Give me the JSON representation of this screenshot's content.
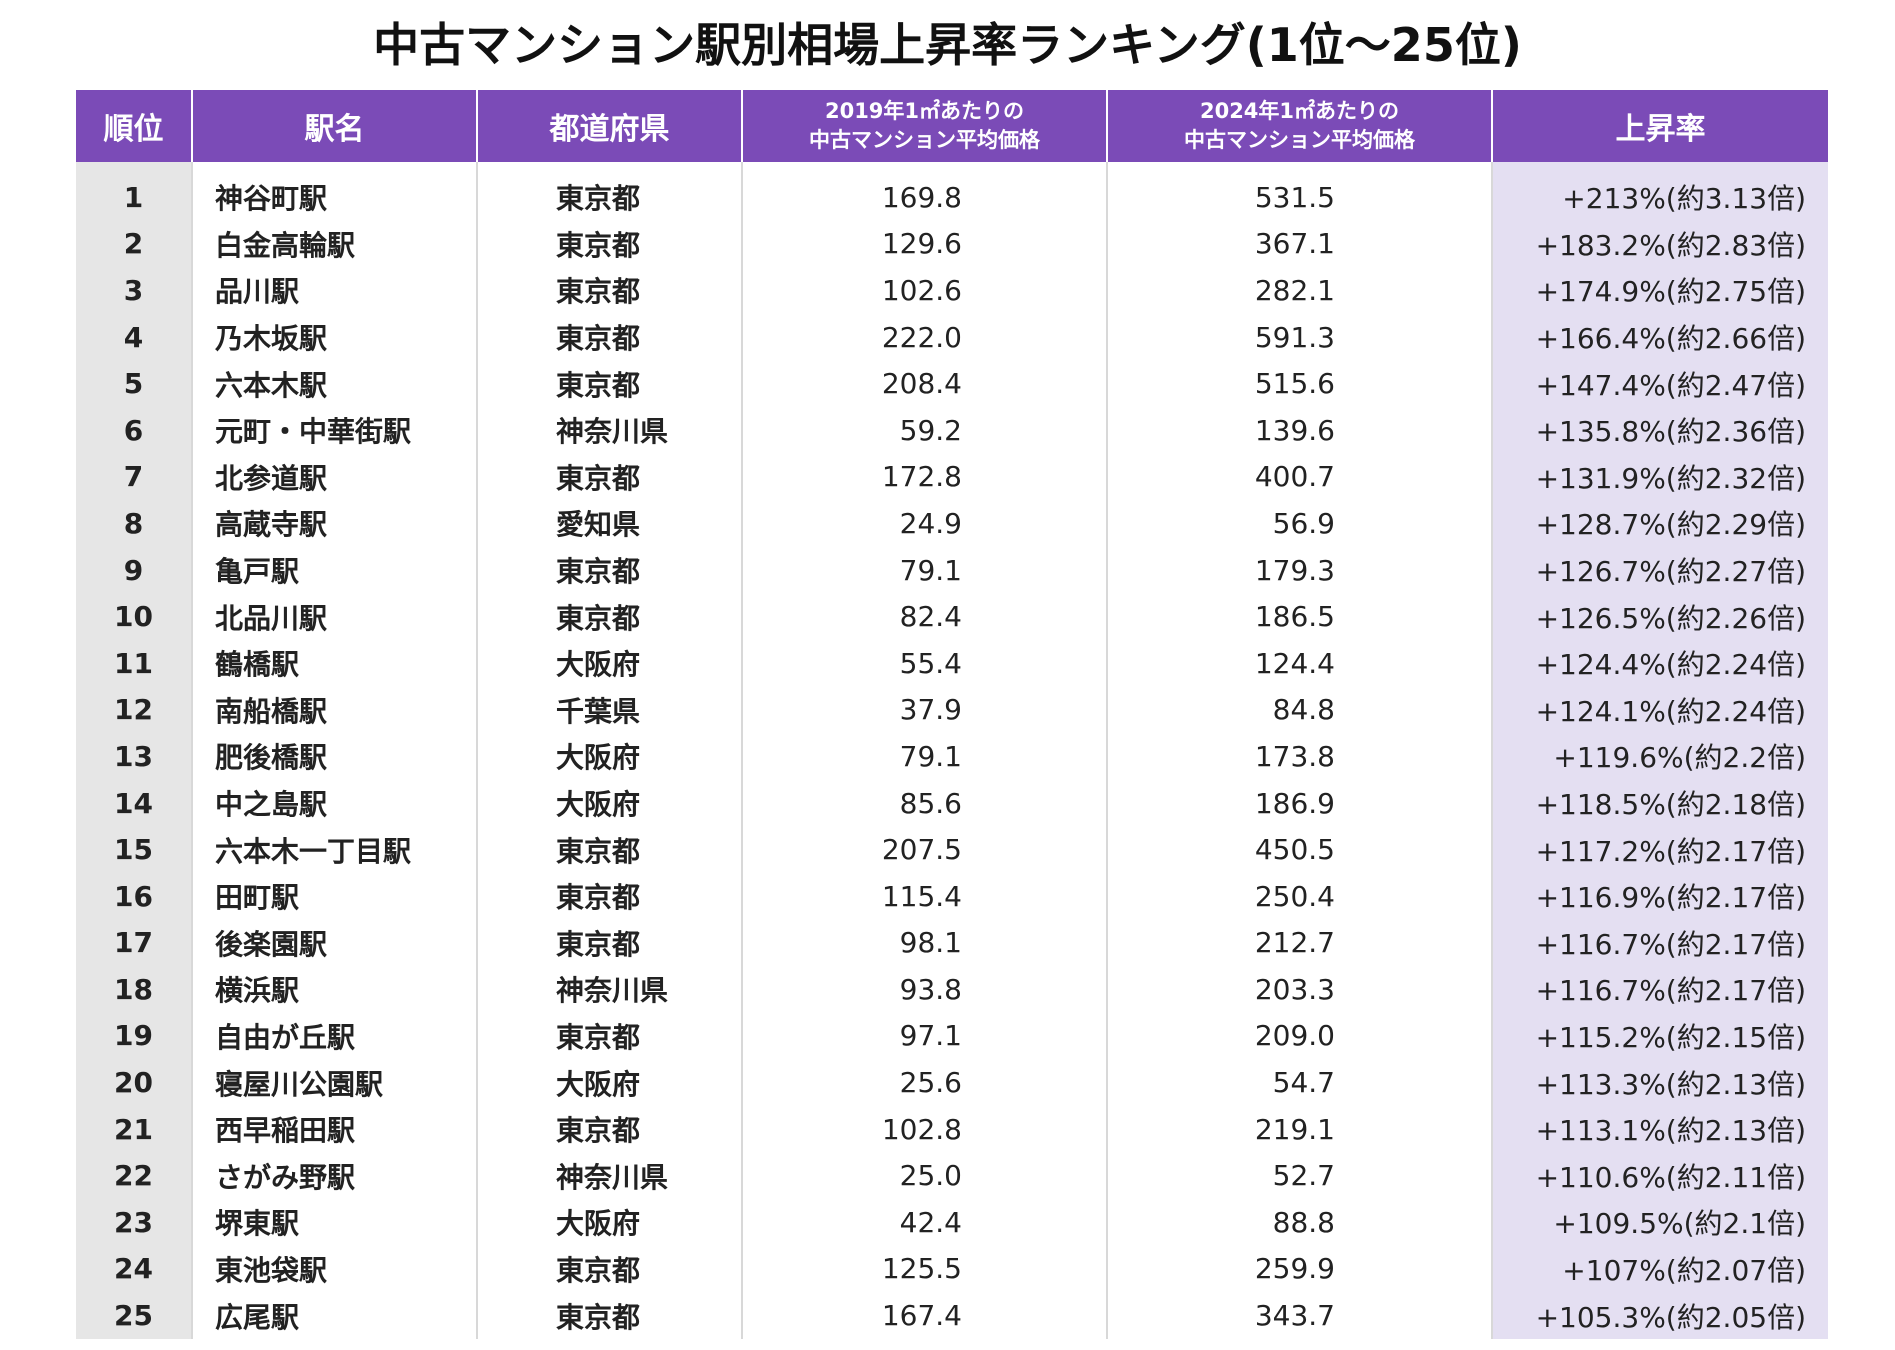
{
  "title": "中古マンション駅別相場上昇率ランキング(1位〜25位)",
  "header": {
    "rank": "順位",
    "station": "駅名",
    "prefecture": "都道府県",
    "price2019_line1": "2019年1㎡あたりの",
    "price2019_line2": "中古マンション平均価格",
    "price2024_line1": "2024年1㎡あたりの",
    "price2024_line2": "中古マンション平均価格",
    "rate": "上昇率"
  },
  "rows": [
    {
      "rank": "1",
      "station": "神谷町駅",
      "prefecture": "東京都",
      "p2019": "169.8",
      "p2024": "531.5",
      "rate": "+213%(約3.13倍)"
    },
    {
      "rank": "2",
      "station": "白金高輪駅",
      "prefecture": "東京都",
      "p2019": "129.6",
      "p2024": "367.1",
      "rate": "+183.2%(約2.83倍)"
    },
    {
      "rank": "3",
      "station": "品川駅",
      "prefecture": "東京都",
      "p2019": "102.6",
      "p2024": "282.1",
      "rate": "+174.9%(約2.75倍)"
    },
    {
      "rank": "4",
      "station": "乃木坂駅",
      "prefecture": "東京都",
      "p2019": "222.0",
      "p2024": "591.3",
      "rate": "+166.4%(約2.66倍)"
    },
    {
      "rank": "5",
      "station": "六本木駅",
      "prefecture": "東京都",
      "p2019": "208.4",
      "p2024": "515.6",
      "rate": "+147.4%(約2.47倍)"
    },
    {
      "rank": "6",
      "station": "元町・中華街駅",
      "prefecture": "神奈川県",
      "p2019": "59.2",
      "p2024": "139.6",
      "rate": "+135.8%(約2.36倍)"
    },
    {
      "rank": "7",
      "station": "北参道駅",
      "prefecture": "東京都",
      "p2019": "172.8",
      "p2024": "400.7",
      "rate": "+131.9%(約2.32倍)"
    },
    {
      "rank": "8",
      "station": "高蔵寺駅",
      "prefecture": "愛知県",
      "p2019": "24.9",
      "p2024": "56.9",
      "rate": "+128.7%(約2.29倍)"
    },
    {
      "rank": "9",
      "station": "亀戸駅",
      "prefecture": "東京都",
      "p2019": "79.1",
      "p2024": "179.3",
      "rate": "+126.7%(約2.27倍)"
    },
    {
      "rank": "10",
      "station": "北品川駅",
      "prefecture": "東京都",
      "p2019": "82.4",
      "p2024": "186.5",
      "rate": "+126.5%(約2.26倍)"
    },
    {
      "rank": "11",
      "station": "鶴橋駅",
      "prefecture": "大阪府",
      "p2019": "55.4",
      "p2024": "124.4",
      "rate": "+124.4%(約2.24倍)"
    },
    {
      "rank": "12",
      "station": "南船橋駅",
      "prefecture": "千葉県",
      "p2019": "37.9",
      "p2024": "84.8",
      "rate": "+124.1%(約2.24倍)"
    },
    {
      "rank": "13",
      "station": "肥後橋駅",
      "prefecture": "大阪府",
      "p2019": "79.1",
      "p2024": "173.8",
      "rate": "+119.6%(約2.2倍)"
    },
    {
      "rank": "14",
      "station": "中之島駅",
      "prefecture": "大阪府",
      "p2019": "85.6",
      "p2024": "186.9",
      "rate": "+118.5%(約2.18倍)"
    },
    {
      "rank": "15",
      "station": "六本木一丁目駅",
      "prefecture": "東京都",
      "p2019": "207.5",
      "p2024": "450.5",
      "rate": "+117.2%(約2.17倍)"
    },
    {
      "rank": "16",
      "station": "田町駅",
      "prefecture": "東京都",
      "p2019": "115.4",
      "p2024": "250.4",
      "rate": "+116.9%(約2.17倍)"
    },
    {
      "rank": "17",
      "station": "後楽園駅",
      "prefecture": "東京都",
      "p2019": "98.1",
      "p2024": "212.7",
      "rate": "+116.7%(約2.17倍)"
    },
    {
      "rank": "18",
      "station": "横浜駅",
      "prefecture": "神奈川県",
      "p2019": "93.8",
      "p2024": "203.3",
      "rate": "+116.7%(約2.17倍)"
    },
    {
      "rank": "19",
      "station": "自由が丘駅",
      "prefecture": "東京都",
      "p2019": "97.1",
      "p2024": "209.0",
      "rate": "+115.2%(約2.15倍)"
    },
    {
      "rank": "20",
      "station": "寝屋川公園駅",
      "prefecture": "大阪府",
      "p2019": "25.6",
      "p2024": "54.7",
      "rate": "+113.3%(約2.13倍)"
    },
    {
      "rank": "21",
      "station": "西早稲田駅",
      "prefecture": "東京都",
      "p2019": "102.8",
      "p2024": "219.1",
      "rate": "+113.1%(約2.13倍)"
    },
    {
      "rank": "22",
      "station": "さがみ野駅",
      "prefecture": "神奈川県",
      "p2019": "25.0",
      "p2024": "52.7",
      "rate": "+110.6%(約2.11倍)"
    },
    {
      "rank": "23",
      "station": "堺東駅",
      "prefecture": "大阪府",
      "p2019": "42.4",
      "p2024": "88.8",
      "rate": "+109.5%(約2.1倍)"
    },
    {
      "rank": "24",
      "station": "東池袋駅",
      "prefecture": "東京都",
      "p2019": "125.5",
      "p2024": "259.9",
      "rate": "+107%(約2.07倍)"
    },
    {
      "rank": "25",
      "station": "広尾駅",
      "prefecture": "東京都",
      "p2019": "167.4",
      "p2024": "343.7",
      "rate": "+105.3%(約2.05倍)"
    }
  ],
  "colors": {
    "header_bg": "#7b4bb7",
    "rank_column_bg": "#e6e6e6",
    "rate_column_bg": "#e4dff2"
  }
}
